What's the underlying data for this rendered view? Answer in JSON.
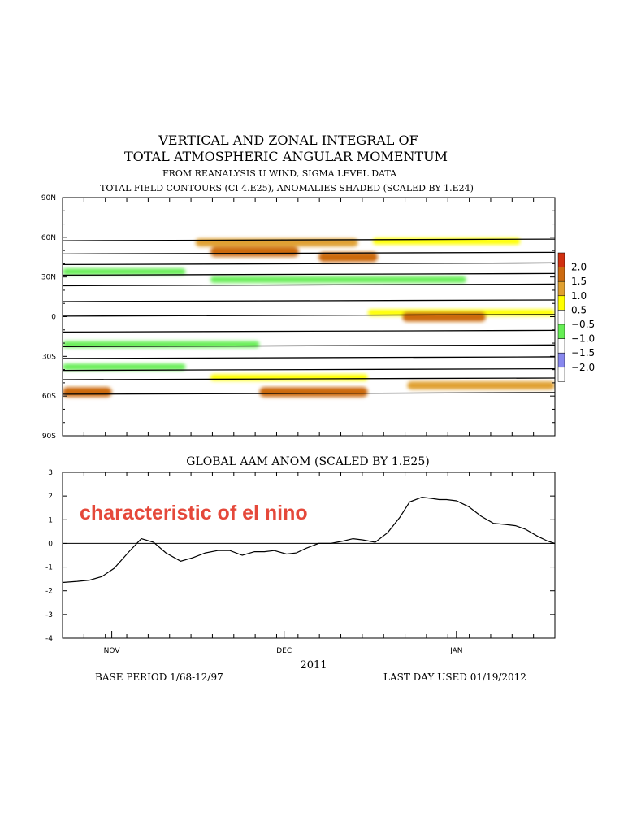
{
  "header": {
    "title_line1": "VERTICAL AND ZONAL INTEGRAL OF",
    "title_line2": "TOTAL ATMOSPHERIC ANGULAR MOMENTUM",
    "subtitle1": "FROM REANALYSIS U WIND,  SIGMA LEVEL DATA",
    "subtitle2": "TOTAL FIELD CONTOURS (CI 4.E25),  ANOMALIES SHADED (SCALED BY 1.E24)"
  },
  "colors": {
    "dark_red": "#d03010",
    "orange_dark": "#cc6a10",
    "orange": "#e0a030",
    "yellow": "#ffff00",
    "green": "#66ee55",
    "blue_light": "#8888ee",
    "blue_dark": "#1a1aa0",
    "annotation": "#e5483a"
  },
  "chart_data": [
    {
      "type": "heatmap",
      "y_ticks": [
        "90N",
        "60N",
        "30N",
        "0",
        "30S",
        "60S",
        "90S"
      ],
      "ylim": [
        -90,
        90
      ],
      "legend": {
        "placement": "right",
        "labels": [
          "2.0",
          "1.5",
          "1.0",
          "0.5",
          "−0.5",
          "−1.0",
          "−1.5",
          "−2.0"
        ]
      },
      "total_field_contour_latitudes": [
        58,
        48,
        40,
        32,
        24,
        12,
        1,
        -11,
        -22,
        -31,
        -40,
        -47,
        -58
      ],
      "anomaly_bands": [
        {
          "lat": 56,
          "x_start": 0.27,
          "x_end": 0.6,
          "value": 1.0
        },
        {
          "lat": 49,
          "x_start": 0.3,
          "x_end": 0.48,
          "value": 1.5
        },
        {
          "lat": 45,
          "x_start": 0.52,
          "x_end": 0.64,
          "value": 1.5
        },
        {
          "lat": 57,
          "x_start": 0.63,
          "x_end": 0.93,
          "value": 0.5
        },
        {
          "lat": 34,
          "x_start": 0.0,
          "x_end": 0.25,
          "value": -0.5
        },
        {
          "lat": 28,
          "x_start": 0.3,
          "x_end": 0.82,
          "value": -0.5
        },
        {
          "lat": 3,
          "x_start": 0.62,
          "x_end": 1.0,
          "value": 0.5
        },
        {
          "lat": 0,
          "x_start": 0.69,
          "x_end": 0.86,
          "value": 1.5
        },
        {
          "lat": -21,
          "x_start": 0.0,
          "x_end": 0.4,
          "value": -0.5
        },
        {
          "lat": -38,
          "x_start": 0.0,
          "x_end": 0.25,
          "value": -0.5
        },
        {
          "lat": -46,
          "x_start": 0.3,
          "x_end": 0.62,
          "value": 0.5
        },
        {
          "lat": -57,
          "x_start": 0.4,
          "x_end": 0.62,
          "value": 1.5
        },
        {
          "lat": -57,
          "x_start": 0.0,
          "x_end": 0.1,
          "value": 1.5
        },
        {
          "lat": -52,
          "x_start": 0.7,
          "x_end": 1.0,
          "value": 1.0
        }
      ]
    },
    {
      "type": "line",
      "title": "GLOBAL AAM ANOM (SCALED BY 1.E25)",
      "annotation": "characteristic of el nino",
      "x_ticks": [
        {
          "x": 0.1,
          "label": "NOV"
        },
        {
          "x": 0.45,
          "label": "DEC"
        },
        {
          "x": 0.8,
          "label": "JAN"
        }
      ],
      "xlabel": "2011",
      "ylim": [
        -4,
        3
      ],
      "y_ticks": [
        "3",
        "2",
        "1",
        "0",
        "-1",
        "-2",
        "-3",
        "-4"
      ],
      "zero_line": true,
      "x": [
        0.0,
        0.03,
        0.055,
        0.08,
        0.105,
        0.135,
        0.16,
        0.185,
        0.21,
        0.24,
        0.265,
        0.29,
        0.315,
        0.34,
        0.365,
        0.39,
        0.41,
        0.43,
        0.455,
        0.475,
        0.495,
        0.52,
        0.545,
        0.57,
        0.59,
        0.61,
        0.635,
        0.66,
        0.685,
        0.705,
        0.73,
        0.75,
        0.765,
        0.78,
        0.8,
        0.825,
        0.85,
        0.875,
        0.9,
        0.92,
        0.94,
        0.965,
        0.985,
        1.0
      ],
      "values": [
        -1.65,
        -1.6,
        -1.55,
        -1.4,
        -1.05,
        -0.35,
        0.2,
        0.05,
        -0.4,
        -0.75,
        -0.6,
        -0.4,
        -0.3,
        -0.3,
        -0.5,
        -0.35,
        -0.35,
        -0.3,
        -0.45,
        -0.4,
        -0.2,
        0.0,
        0.0,
        0.1,
        0.2,
        0.15,
        0.05,
        0.45,
        1.1,
        1.75,
        1.95,
        1.9,
        1.85,
        1.85,
        1.8,
        1.55,
        1.15,
        0.85,
        0.8,
        0.75,
        0.6,
        0.3,
        0.1,
        0.0
      ]
    }
  ],
  "footer": {
    "base_period": "BASE PERIOD  1/68-12/97",
    "last_day": "LAST DAY USED 01/19/2012"
  }
}
